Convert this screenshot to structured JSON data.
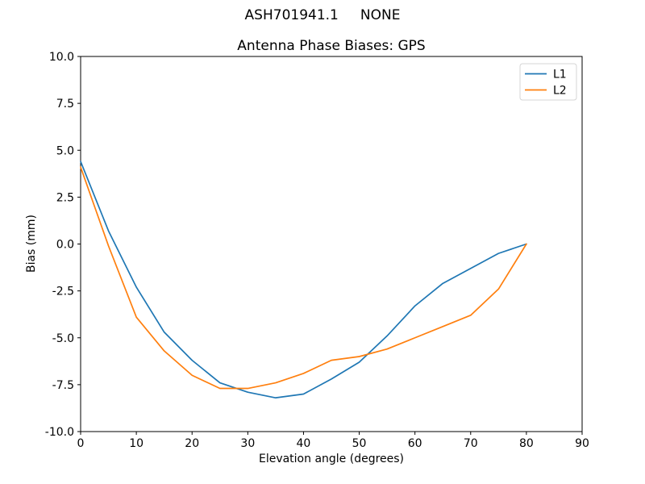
{
  "chart_data": {
    "type": "line",
    "suptitle": "ASH701941.1     NONE",
    "title": "Antenna Phase Biases: GPS",
    "xlabel": "Elevation angle (degrees)",
    "ylabel": "Bias (mm)",
    "xlim": [
      0,
      90
    ],
    "ylim": [
      -10,
      10
    ],
    "grid": false,
    "legend_position": "upper right",
    "axis_color": "#000000",
    "background_color": "#ffffff",
    "xticks": [
      0,
      10,
      20,
      30,
      40,
      50,
      60,
      70,
      80,
      90
    ],
    "xtick_labels": [
      "0",
      "10",
      "20",
      "30",
      "40",
      "50",
      "60",
      "70",
      "80",
      "90"
    ],
    "yticks": [
      10,
      7.5,
      5,
      2.5,
      0,
      -2.5,
      -5,
      -7.5,
      -10
    ],
    "ytick_labels": [
      "10.0",
      "7.5",
      "5.0",
      "2.5",
      "0.0",
      "-2.5",
      "-5.0",
      "-7.5",
      "-10.0"
    ],
    "x": [
      0,
      5,
      10,
      15,
      20,
      25,
      30,
      35,
      40,
      45,
      50,
      55,
      60,
      65,
      70,
      75,
      80
    ],
    "series": [
      {
        "name": "L1",
        "color": "#1f77b4",
        "values": [
          4.4,
          0.7,
          -2.3,
          -4.7,
          -6.2,
          -7.4,
          -7.9,
          -8.2,
          -8.0,
          -7.2,
          -6.3,
          -4.9,
          -3.3,
          -2.1,
          -1.3,
          -0.5,
          0.0
        ]
      },
      {
        "name": "L2",
        "color": "#ff7f0e",
        "values": [
          4.1,
          -0.1,
          -3.9,
          -5.7,
          -7.0,
          -7.7,
          -7.7,
          -7.4,
          -6.9,
          -6.2,
          -6.0,
          -5.6,
          -5.0,
          -4.4,
          -3.8,
          -2.4,
          0.0
        ]
      }
    ]
  }
}
